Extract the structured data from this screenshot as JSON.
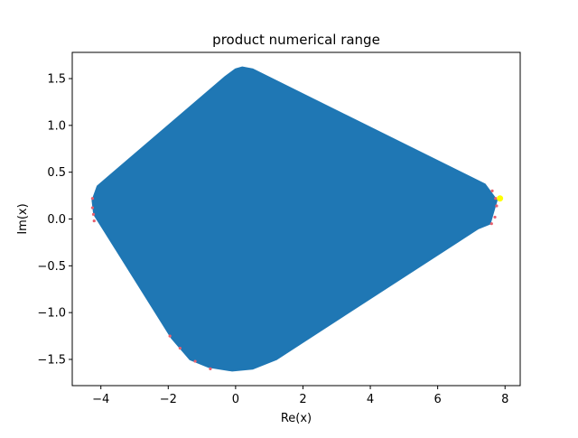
{
  "chart_data": {
    "type": "scatter",
    "title": "product numerical range",
    "xlabel": "Re(x)",
    "ylabel": "Im(x)",
    "xlim": [
      -4.85,
      8.45
    ],
    "ylim": [
      -1.78,
      1.78
    ],
    "xticks": [
      -4,
      -2,
      0,
      2,
      4,
      6,
      8
    ],
    "xtick_labels": [
      "−4",
      "−2",
      "0",
      "2",
      "4",
      "6",
      "8"
    ],
    "yticks": [
      -1.5,
      -1.0,
      -0.5,
      0.0,
      0.5,
      1.0,
      1.5
    ],
    "ytick_labels": [
      "−1.5",
      "−1.0",
      "−0.5",
      "0.0",
      "0.5",
      "1.0",
      "1.5"
    ],
    "grid": false,
    "legend": "none",
    "fill_color": "#1f77b4",
    "edge_marker_color": "#e8606e",
    "highlight_color": "#ffff00",
    "series": [
      {
        "role": "numerical-range-fill",
        "points": [
          [
            -4.1,
            0.35
          ],
          [
            -0.3,
            1.52
          ],
          [
            0.0,
            1.6
          ],
          [
            0.2,
            1.62
          ],
          [
            0.5,
            1.6
          ],
          [
            7.4,
            0.37
          ],
          [
            7.75,
            0.2
          ],
          [
            7.55,
            -0.05
          ],
          [
            7.2,
            -0.1
          ],
          [
            1.2,
            -1.5
          ],
          [
            0.5,
            -1.6
          ],
          [
            -0.1,
            -1.62
          ],
          [
            -0.8,
            -1.58
          ],
          [
            -1.35,
            -1.5
          ],
          [
            -1.9,
            -1.27
          ],
          [
            -4.2,
            0.05
          ],
          [
            -4.25,
            0.2
          ]
        ]
      },
      {
        "role": "boundary-markers",
        "points": [
          [
            -4.25,
            0.22
          ],
          [
            -4.25,
            0.12
          ],
          [
            -4.22,
            0.05
          ],
          [
            -4.2,
            -0.02
          ],
          [
            -1.95,
            -1.25
          ],
          [
            -1.65,
            -1.38
          ],
          [
            -1.2,
            -1.52
          ],
          [
            -0.75,
            -1.6
          ],
          [
            7.62,
            0.3
          ],
          [
            7.72,
            0.22
          ],
          [
            7.75,
            0.14
          ],
          [
            7.7,
            0.02
          ],
          [
            7.6,
            -0.05
          ]
        ]
      },
      {
        "role": "highlight-point",
        "points": [
          [
            7.85,
            0.22
          ]
        ]
      }
    ]
  }
}
